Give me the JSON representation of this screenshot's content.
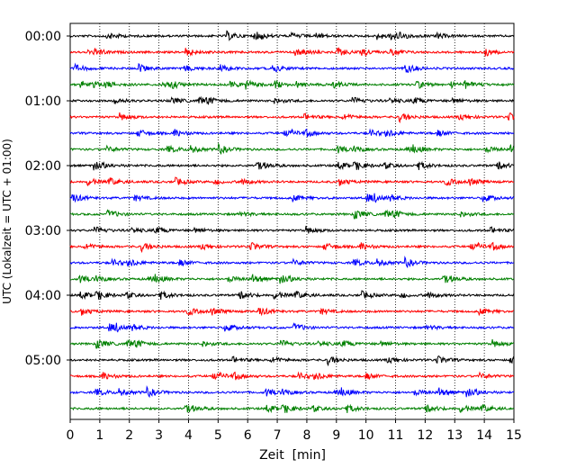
{
  "chart_data": {
    "type": "line",
    "title": "",
    "xlabel": "Zeit  [min]",
    "ylabel": "UTC (Lokalzeit = UTC + 01:00)",
    "xlim": [
      0,
      15
    ],
    "x_ticks": [
      "0",
      "1",
      "2",
      "3",
      "4",
      "5",
      "6",
      "7",
      "8",
      "9",
      "10",
      "11",
      "12",
      "13",
      "14",
      "15"
    ],
    "y_ticks": [
      "00:00",
      "01:00",
      "02:00",
      "03:00",
      "04:00",
      "05:00"
    ],
    "grid": "vertical dotted at each minute",
    "trace_interval_min": 15,
    "trace_count": 24,
    "trace_start_times": [
      "00:00",
      "00:15",
      "00:30",
      "00:45",
      "01:00",
      "01:15",
      "01:30",
      "01:45",
      "02:00",
      "02:15",
      "02:30",
      "02:45",
      "03:00",
      "03:15",
      "03:30",
      "03:45",
      "04:00",
      "04:15",
      "04:30",
      "04:45",
      "05:00",
      "05:15",
      "05:30",
      "05:45"
    ],
    "trace_colors": [
      "#000000",
      "#ff0000",
      "#0000ff",
      "#008000"
    ],
    "trace_color_names": [
      "black",
      "red",
      "blue",
      "green"
    ]
  }
}
